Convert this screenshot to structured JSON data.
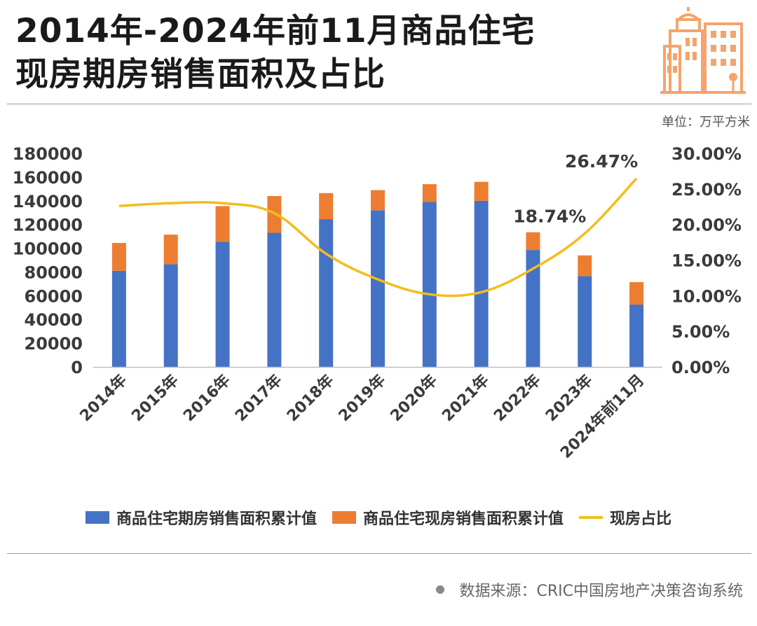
{
  "header": {
    "title_line1": "2014年-2024年前11月商品住宅",
    "title_line2": "现房期房销售面积及占比"
  },
  "unit_label": "单位：万平方米",
  "legend": {
    "series1": "商品住宅期房销售面积累计值",
    "series2": "商品住宅现房销售面积累计值",
    "series3": "现房占比"
  },
  "source": "数据来源：CRIC中国房地产决策咨询系统",
  "colors": {
    "blue": "#4472C4",
    "orange": "#ED7D31",
    "yellow": "#F2BD1D",
    "logo": "#F4A46C"
  },
  "chart_data": {
    "type": "bar",
    "stacked": true,
    "categories": [
      "2014年",
      "2015年",
      "2016年",
      "2017年",
      "2018年",
      "2019年",
      "2020年",
      "2021年",
      "2022年",
      "2023年",
      "2024年前11月"
    ],
    "series": [
      {
        "name": "商品住宅期房销售面积累计值",
        "type": "bar",
        "axis": "left",
        "values": [
          81000,
          86500,
          105500,
          113000,
          124500,
          132000,
          139000,
          140000,
          98500,
          76500,
          52500
        ]
      },
      {
        "name": "商品住宅现房销售面积累计值",
        "type": "bar",
        "axis": "left",
        "values": [
          23500,
          25000,
          30000,
          31000,
          22000,
          17000,
          15000,
          16000,
          15000,
          17500,
          19000
        ]
      },
      {
        "name": "现房占比",
        "type": "line",
        "axis": "right",
        "values": [
          22.6,
          23.0,
          23.0,
          21.6,
          15.9,
          12.3,
          10.2,
          10.5,
          13.8,
          18.74,
          26.47
        ]
      }
    ],
    "annotations": [
      {
        "category": "2023年",
        "text": "18.74%"
      },
      {
        "category": "2024年前11月",
        "text": "26.47%"
      }
    ],
    "ylim": [
      0,
      180000
    ],
    "yticks": [
      "0",
      "20000",
      "40000",
      "60000",
      "80000",
      "100000",
      "120000",
      "140000",
      "160000",
      "180000"
    ],
    "y2lim": [
      0,
      30
    ],
    "y2ticks": [
      "0.00%",
      "5.00%",
      "10.00%",
      "15.00%",
      "20.00%",
      "25.00%",
      "30.00%"
    ],
    "grid": false
  }
}
